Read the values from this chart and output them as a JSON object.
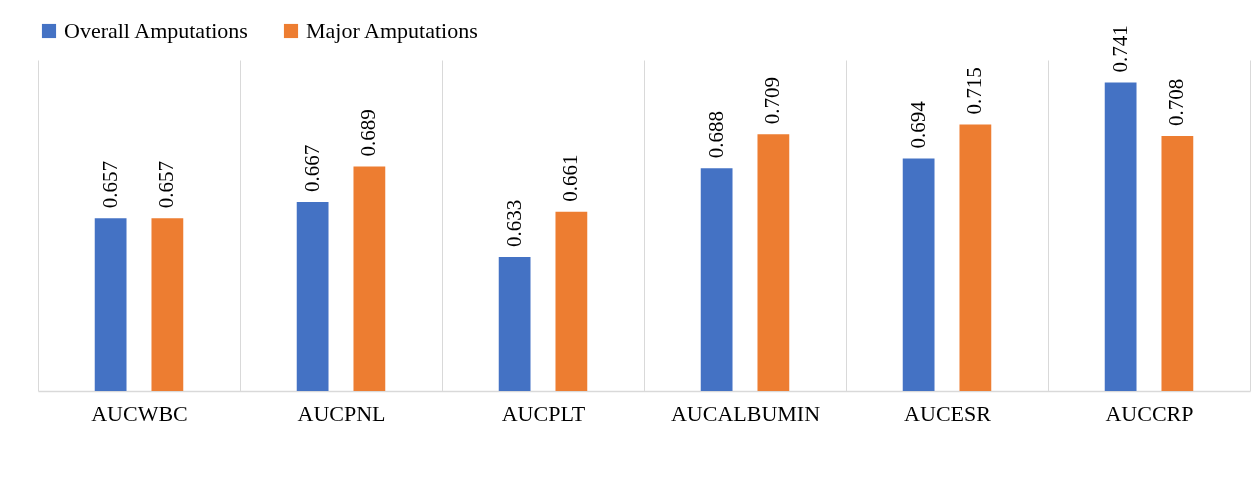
{
  "chart_data": {
    "type": "bar",
    "categories": [
      "AUCWBC",
      "AUCPNL",
      "AUCPLT",
      "AUCALBUMIN",
      "AUCESR",
      "AUCCRP"
    ],
    "series": [
      {
        "name": "Overall Amputations",
        "color": "#4472c4",
        "values": [
          0.657,
          0.667,
          0.633,
          0.688,
          0.694,
          0.741
        ]
      },
      {
        "name": "Major Amputations",
        "color": "#ed7d31",
        "values": [
          0.657,
          0.689,
          0.661,
          0.709,
          0.715,
          0.708
        ]
      }
    ],
    "ylim": [
      0.55,
      0.755
    ],
    "tick_labels": "x",
    "data_labels": true,
    "grid": "x",
    "legend": "top"
  }
}
